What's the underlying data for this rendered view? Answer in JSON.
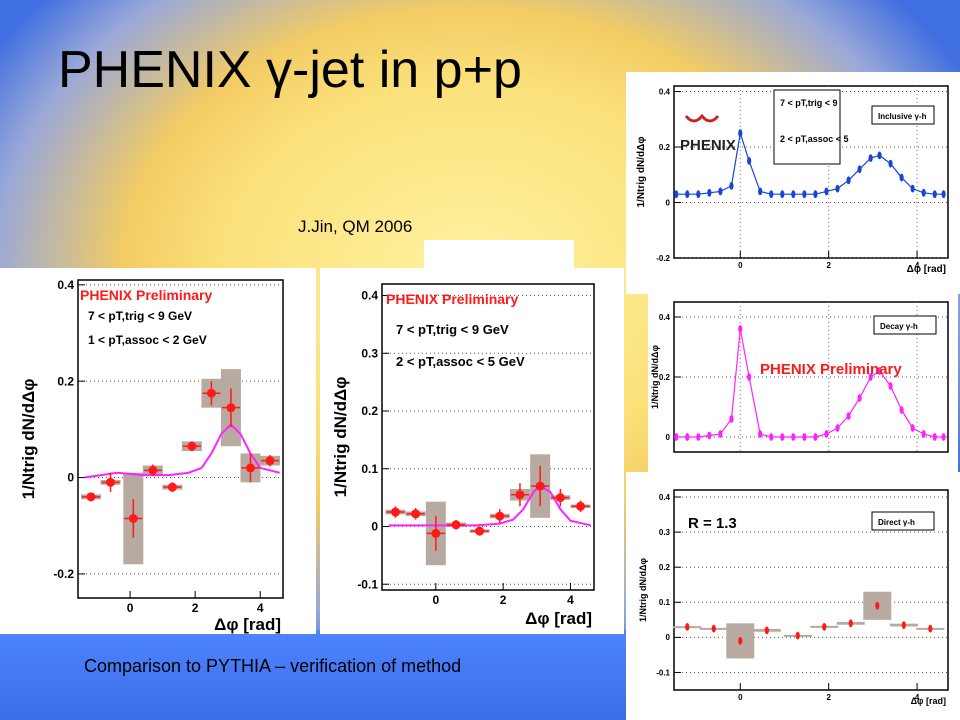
{
  "slide": {
    "title": "PHENIX γ-jet in p+p",
    "attribution": "J.Jin, QM 2006",
    "caption": "Comparison to PYTHIA – verification of method"
  },
  "colors": {
    "data_red": "#ff1a1a",
    "pythia_magenta": "#ff22ff",
    "inclusive_blue": "#1546d6",
    "syst_box": "#b8aaa0"
  },
  "chart_data": [
    {
      "type": "scatter",
      "preliminary": "PHENIX Preliminary",
      "cut1": "7 < pT,trig < 9 GeV",
      "cut2": "1 < pT,assoc < 2 GeV",
      "ylabel": "1/Ntrig dN/dΔφ",
      "xlabel": "Δφ [rad]",
      "xlim": [
        -1.6,
        4.7
      ],
      "ylim": [
        -0.25,
        0.41
      ],
      "xticks": [
        0,
        2,
        4
      ],
      "xticklabels": [
        "0",
        "2",
        "4"
      ],
      "yticks": [
        -0.2,
        0,
        0.2,
        0.4
      ],
      "yticklabels": [
        "-0.2",
        "0",
        "0.2",
        "0.4"
      ],
      "x": [
        -1.2,
        -0.6,
        0.1,
        0.7,
        1.3,
        1.9,
        2.5,
        3.1,
        3.7,
        4.3
      ],
      "y": [
        -0.04,
        -0.01,
        -0.085,
        0.015,
        -0.02,
        0.065,
        0.175,
        0.145,
        0.02,
        0.035
      ],
      "yerr": [
        0.008,
        0.02,
        0.04,
        0.012,
        0.01,
        0.01,
        0.025,
        0.04,
        0.03,
        0.012
      ],
      "syst": [
        0.005,
        0.005,
        0.095,
        0.01,
        0.005,
        0.01,
        0.03,
        0.08,
        0.03,
        0.01
      ],
      "pythia_x": [
        -1.4,
        -0.4,
        0.4,
        1.2,
        1.8,
        2.2,
        2.5,
        2.8,
        3.1,
        3.4,
        3.7,
        4.0,
        4.6
      ],
      "pythia_y": [
        0.0,
        0.01,
        0.005,
        0.005,
        0.01,
        0.02,
        0.05,
        0.09,
        0.11,
        0.09,
        0.05,
        0.02,
        0.01
      ]
    },
    {
      "type": "scatter",
      "preliminary": "PHENIX Preliminary",
      "cut1": "7 < pT,trig < 9 GeV",
      "cut2": "2 < pT,assoc < 5 GeV",
      "ylabel": "1/Ntrig dN/dΔφ",
      "xlabel": "Δφ [rad]",
      "xlim": [
        -1.6,
        4.7
      ],
      "ylim": [
        -0.11,
        0.42
      ],
      "xticks": [
        0,
        2,
        4
      ],
      "xticklabels": [
        "0",
        "2",
        "4"
      ],
      "yticks": [
        -0.1,
        0,
        0.1,
        0.2,
        0.3,
        0.4
      ],
      "yticklabels": [
        "-0.1",
        "0",
        "0.1",
        "0.2",
        "0.3",
        "0.4"
      ],
      "x": [
        -1.2,
        -0.6,
        0.0,
        0.6,
        1.3,
        1.9,
        2.5,
        3.1,
        3.7,
        4.3
      ],
      "y": [
        0.025,
        0.022,
        -0.012,
        0.003,
        -0.008,
        0.018,
        0.055,
        0.07,
        0.05,
        0.035
      ],
      "yerr": [
        0.01,
        0.01,
        0.03,
        0.008,
        0.008,
        0.012,
        0.02,
        0.035,
        0.015,
        0.01
      ],
      "syst": [
        0.004,
        0.004,
        0.055,
        0.004,
        0.003,
        0.004,
        0.01,
        0.055,
        0.004,
        0.003
      ],
      "pythia_x": [
        -1.4,
        0.0,
        1.2,
        1.9,
        2.3,
        2.6,
        2.9,
        3.1,
        3.4,
        3.7,
        4.0,
        4.6
      ],
      "pythia_y": [
        0.002,
        0.002,
        0.002,
        0.005,
        0.012,
        0.03,
        0.06,
        0.07,
        0.06,
        0.03,
        0.01,
        0.002
      ]
    },
    {
      "type": "scatter",
      "logo": "PHENIX",
      "cut1": "7 < pT,trig < 9",
      "cut2": "2 < pT,assoc < 5",
      "legend": "Inclusive γ-h",
      "ylabel": "1/Ntrig dN/dΔφ",
      "xlabel": "Δφ [rad]",
      "xlim": [
        -1.5,
        4.7
      ],
      "ylim": [
        -0.2,
        0.42
      ],
      "xticks": [
        0,
        2,
        4
      ],
      "xticklabels": [
        "0",
        "2",
        "4"
      ],
      "yticks": [
        -0.2,
        0,
        0.2,
        0.4
      ],
      "yticklabels": [
        "-0.2",
        "0",
        "0.2",
        "0.4"
      ],
      "x": [
        -1.45,
        -1.2,
        -0.95,
        -0.7,
        -0.45,
        -0.2,
        0.0,
        0.2,
        0.45,
        0.7,
        0.95,
        1.2,
        1.45,
        1.7,
        1.95,
        2.2,
        2.45,
        2.7,
        2.95,
        3.15,
        3.4,
        3.65,
        3.9,
        4.15,
        4.4,
        4.6
      ],
      "y": [
        0.03,
        0.03,
        0.03,
        0.035,
        0.04,
        0.06,
        0.25,
        0.15,
        0.04,
        0.03,
        0.03,
        0.03,
        0.03,
        0.03,
        0.04,
        0.05,
        0.08,
        0.12,
        0.16,
        0.17,
        0.14,
        0.09,
        0.05,
        0.035,
        0.03,
        0.03
      ]
    },
    {
      "type": "scatter",
      "preliminary": "PHENIX Preliminary",
      "legend": "Decay γ-h",
      "ylabel": "1/Ntrig dN/dΔφ",
      "xlim": [
        -1.5,
        4.7
      ],
      "ylim": [
        -0.05,
        0.45
      ],
      "yticks": [
        0,
        0.2,
        0.4
      ],
      "yticklabels": [
        "0",
        "0.2",
        "0.4"
      ],
      "x": [
        -1.45,
        -1.2,
        -0.95,
        -0.7,
        -0.45,
        -0.2,
        0.0,
        0.2,
        0.45,
        0.7,
        0.95,
        1.2,
        1.45,
        1.7,
        1.95,
        2.2,
        2.45,
        2.7,
        2.95,
        3.15,
        3.4,
        3.65,
        3.9,
        4.15,
        4.4,
        4.6
      ],
      "y": [
        0.0,
        0.0,
        0.0,
        0.005,
        0.01,
        0.06,
        0.36,
        0.2,
        0.01,
        0.0,
        0.0,
        0.0,
        0.0,
        0.0,
        0.01,
        0.03,
        0.07,
        0.13,
        0.2,
        0.22,
        0.17,
        0.09,
        0.03,
        0.01,
        0.0,
        0.0
      ]
    },
    {
      "type": "scatter",
      "rgamma": "R  = 1.3",
      "legend": "Direct γ-h",
      "ylabel": "1/Ntrig dN/dΔφ",
      "xlabel": "Δφ [rad]",
      "xlim": [
        -1.5,
        4.7
      ],
      "ylim": [
        -0.15,
        0.42
      ],
      "xticks": [
        0,
        2,
        4
      ],
      "xticklabels": [
        "0",
        "2",
        "4"
      ],
      "yticks": [
        -0.1,
        0,
        0.1,
        0.2,
        0.3,
        0.4
      ],
      "yticklabels": [
        "-0.1",
        "0",
        "0.1",
        "0.2",
        "0.3",
        "0.4"
      ],
      "x": [
        -1.2,
        -0.6,
        0.0,
        0.6,
        1.3,
        1.9,
        2.5,
        3.1,
        3.7,
        4.3
      ],
      "y": [
        0.03,
        0.025,
        -0.01,
        0.02,
        0.005,
        0.03,
        0.04,
        0.09,
        0.035,
        0.025
      ],
      "syst": [
        0.002,
        0.002,
        0.05,
        0.004,
        0.002,
        0.003,
        0.004,
        0.04,
        0.004,
        0.002
      ]
    }
  ]
}
